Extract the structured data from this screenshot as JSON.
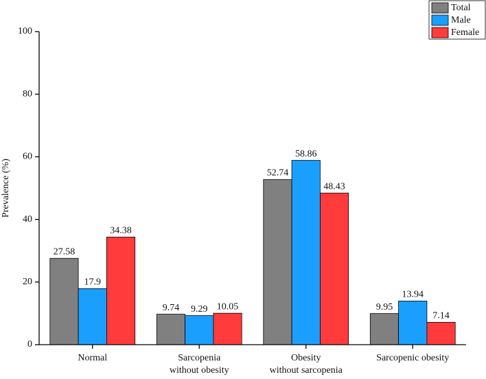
{
  "chart_data": {
    "type": "bar",
    "categories": [
      "Normal",
      "Sarcopenia\nwithout obesity",
      "Obesity\nwithout sarcopenia",
      "Sarcopenic obesity"
    ],
    "series": [
      {
        "name": "Total",
        "color": "#808080",
        "values": [
          27.58,
          9.74,
          52.74,
          9.95
        ]
      },
      {
        "name": "Male",
        "color": "#1a9fff",
        "values": [
          17.9,
          9.29,
          58.86,
          13.94
        ]
      },
      {
        "name": "Female",
        "color": "#ff3b3b",
        "values": [
          34.38,
          10.05,
          48.43,
          7.14
        ]
      }
    ],
    "y_label": "Prevalence (%)",
    "ylim": [
      0,
      100
    ],
    "yticks": [
      0,
      20,
      40,
      60,
      80,
      100
    ],
    "legend": "top-right",
    "grid": false
  }
}
